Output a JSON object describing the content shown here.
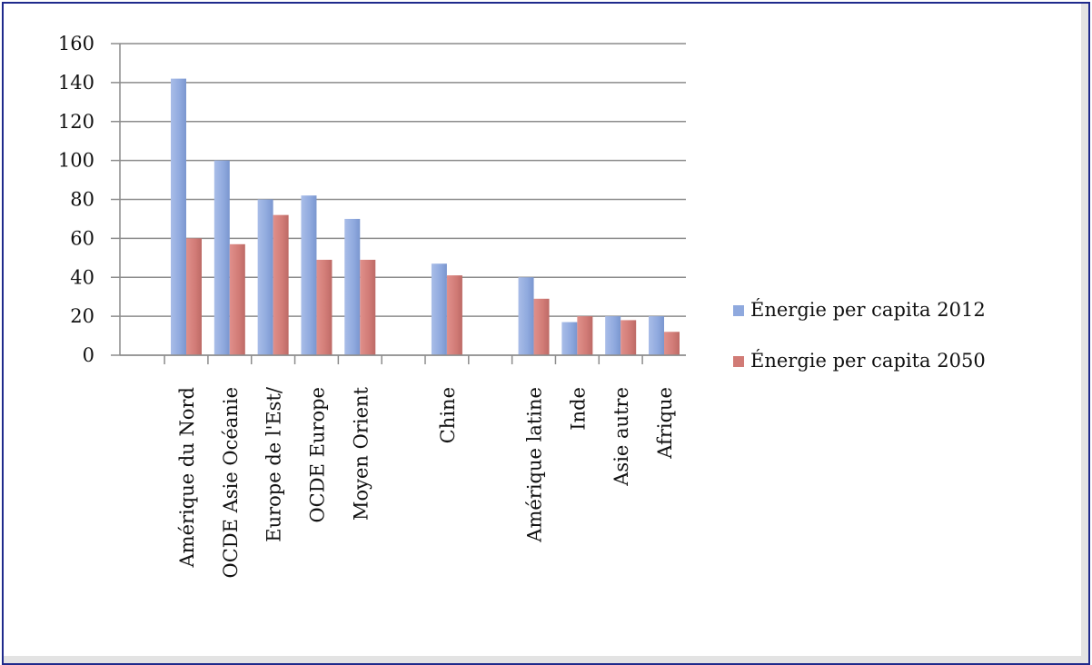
{
  "chart_data": {
    "type": "bar",
    "title": "",
    "xlabel": "",
    "ylabel": "",
    "ylim": [
      0,
      160
    ],
    "yticks": [
      0,
      20,
      40,
      60,
      80,
      100,
      120,
      140,
      160
    ],
    "grid": true,
    "legend_position": "right",
    "categories": [
      "Amérique du Nord",
      "OCDE Asie Océanie",
      "Europe de l'Est/",
      "OCDE Europe",
      "Moyen Orient",
      "",
      "Chine",
      "",
      "Amérique latine",
      "Inde",
      "Asie autre",
      "Afrique"
    ],
    "series": [
      {
        "name": "Énergie per capita 2012",
        "color": "#8fa9de",
        "values": [
          142,
          100,
          80,
          82,
          70,
          null,
          47,
          null,
          40,
          17,
          20,
          20
        ]
      },
      {
        "name": "Énergie per capita 2050",
        "color": "#d17b76",
        "values": [
          60,
          57,
          72,
          49,
          49,
          null,
          41,
          null,
          29,
          20,
          18,
          12
        ]
      }
    ]
  }
}
